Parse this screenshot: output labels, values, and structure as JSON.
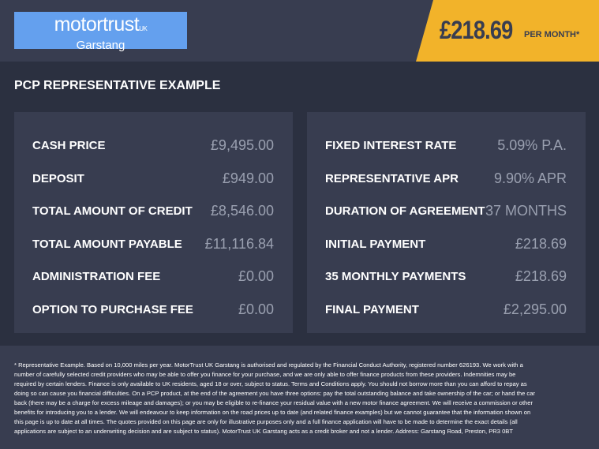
{
  "header": {
    "logo": {
      "brand": "motortrust",
      "suffix": "UK",
      "location": "Garstang"
    },
    "price": "£218.69",
    "per_month": "PER MONTH*",
    "accent": "#f2b32a"
  },
  "title": "PCP REPRESENTATIVE EXAMPLE",
  "left": [
    {
      "label": "CASH PRICE",
      "value": "£9,495.00"
    },
    {
      "label": "DEPOSIT",
      "value": "£949.00"
    },
    {
      "label": "TOTAL AMOUNT OF CREDIT",
      "value": "£8,546.00"
    },
    {
      "label": "TOTAL AMOUNT PAYABLE",
      "value": "£11,116.84"
    },
    {
      "label": "ADMINISTRATION FEE",
      "value": "£0.00"
    },
    {
      "label": "OPTION TO PURCHASE FEE",
      "value": "£0.00"
    }
  ],
  "right": [
    {
      "label": "FIXED INTEREST RATE",
      "value": "5.09% P.A."
    },
    {
      "label": "REPRESENTATIVE APR",
      "value": "9.90% APR"
    },
    {
      "label": "DURATION OF AGREEMENT",
      "value": "37 MONTHS"
    },
    {
      "label": "INITIAL PAYMENT",
      "value": "£218.69"
    },
    {
      "label": "35 MONTHLY PAYMENTS",
      "value": "£218.69"
    },
    {
      "label": "FINAL PAYMENT",
      "value": "£2,295.00"
    }
  ],
  "footnote": "* Representative Example. Based on 10,000 miles per year. MotorTrust UK Garstang is authorised and regulated by the Financial Conduct Authority, registered number 626193. We work with a number of carefully selected credit providers who may be able to offer you finance for your purchase, and we are only able to offer finance products from these providers. Indemnities may be required by certain lenders. Finance is only available to UK residents, aged 18 or over, subject to status. Terms and Conditions apply. You should not borrow more than you can afford to repay as doing so can cause you financial difficulties. On a PCP product, at the end of the agreement you have three options: pay the total outstanding balance and take ownership of the car; or hand the car back (there may be a charge for excess mileage and damages); or you may be eligible to re-finance your residual value with a new motor finance agreement. We will receive a commission or other benefits for introducing you to a lender. We will endeavour to keep information on the road prices up to date (and related finance examples) but we cannot guarantee that the information shown on this page is up to date at all times. The quotes provided on this page are only for illustrative purposes only and a full finance application will have to be made to determine the exact details (all applications are subject to an underwriting decision and are subject to status). MotorTrust UK Garstang acts as a credit broker and not a lender. Address: Garstang Road, Preston, PR3 0BT"
}
